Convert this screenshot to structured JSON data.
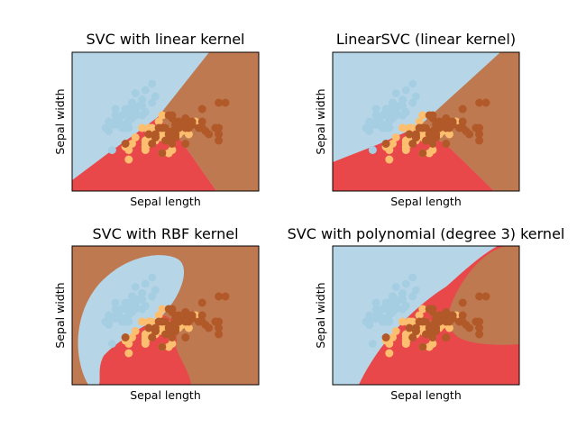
{
  "chart_data": [
    {
      "type": "scatter",
      "title": "SVC with linear kernel",
      "xlabel": "Sepal length",
      "ylabel": "Sepal width",
      "xticks": [],
      "yticks": [],
      "region_colors": {
        "class_0": "#b6d6e8",
        "class_1": "#e8484a",
        "class_2": "#bf7950"
      },
      "point_colors": {
        "class_0": "#a6cee3",
        "class_1": "#fdbf6f",
        "class_2": "#b15928"
      }
    },
    {
      "type": "scatter",
      "title": "LinearSVC (linear kernel)",
      "xlabel": "Sepal length",
      "ylabel": "Sepal width",
      "xticks": [],
      "yticks": [],
      "region_colors": {
        "class_0": "#b6d6e8",
        "class_1": "#e8484a",
        "class_2": "#bf7950"
      },
      "point_colors": {
        "class_0": "#a6cee3",
        "class_1": "#fdbf6f",
        "class_2": "#b15928"
      }
    },
    {
      "type": "scatter",
      "title": "SVC with RBF kernel",
      "xlabel": "Sepal length",
      "ylabel": "Sepal width",
      "xticks": [],
      "yticks": [],
      "region_colors": {
        "class_0": "#b6d6e8",
        "class_1": "#e8484a",
        "class_2": "#bf7950"
      },
      "point_colors": {
        "class_0": "#a6cee3",
        "class_1": "#fdbf6f",
        "class_2": "#b15928"
      }
    },
    {
      "type": "scatter",
      "title": "SVC with polynomial (degree 3) kernel",
      "xlabel": "Sepal length",
      "ylabel": "Sepal width",
      "xticks": [],
      "yticks": [],
      "region_colors": {
        "class_0": "#b6d6e8",
        "class_1": "#e8484a",
        "class_2": "#bf7950"
      },
      "point_colors": {
        "class_0": "#a6cee3",
        "class_1": "#fdbf6f",
        "class_2": "#b15928"
      }
    }
  ],
  "points": {
    "class_0": [
      [
        5.1,
        3.5
      ],
      [
        4.9,
        3.0
      ],
      [
        4.7,
        3.2
      ],
      [
        4.6,
        3.1
      ],
      [
        5.0,
        3.6
      ],
      [
        5.4,
        3.9
      ],
      [
        4.6,
        3.4
      ],
      [
        5.0,
        3.4
      ],
      [
        4.4,
        2.9
      ],
      [
        4.9,
        3.1
      ],
      [
        5.4,
        3.7
      ],
      [
        4.8,
        3.4
      ],
      [
        4.8,
        3.0
      ],
      [
        4.3,
        3.0
      ],
      [
        5.8,
        4.0
      ],
      [
        5.7,
        4.4
      ],
      [
        5.4,
        3.9
      ],
      [
        5.1,
        3.5
      ],
      [
        5.7,
        3.8
      ],
      [
        5.1,
        3.8
      ],
      [
        5.4,
        3.4
      ],
      [
        5.1,
        3.7
      ],
      [
        4.6,
        3.6
      ],
      [
        5.1,
        3.3
      ],
      [
        4.8,
        3.4
      ],
      [
        5.0,
        3.0
      ],
      [
        5.0,
        3.4
      ],
      [
        5.2,
        3.5
      ],
      [
        5.2,
        3.4
      ],
      [
        4.7,
        3.2
      ],
      [
        4.8,
        3.1
      ],
      [
        5.4,
        3.4
      ],
      [
        5.2,
        4.1
      ],
      [
        5.5,
        4.2
      ],
      [
        4.9,
        3.1
      ],
      [
        5.0,
        3.2
      ],
      [
        5.5,
        3.5
      ],
      [
        4.9,
        3.6
      ],
      [
        4.4,
        3.0
      ],
      [
        5.1,
        3.4
      ],
      [
        5.0,
        3.5
      ],
      [
        4.5,
        2.3
      ],
      [
        4.4,
        3.2
      ],
      [
        5.0,
        3.5
      ],
      [
        5.1,
        3.8
      ],
      [
        4.8,
        3.0
      ],
      [
        5.1,
        3.8
      ],
      [
        4.6,
        3.2
      ],
      [
        5.3,
        3.7
      ],
      [
        5.0,
        3.3
      ]
    ],
    "class_1": [
      [
        7.0,
        3.2
      ],
      [
        6.4,
        3.2
      ],
      [
        6.9,
        3.1
      ],
      [
        5.5,
        2.3
      ],
      [
        6.5,
        2.8
      ],
      [
        5.7,
        2.8
      ],
      [
        6.3,
        3.3
      ],
      [
        4.9,
        2.4
      ],
      [
        6.6,
        2.9
      ],
      [
        5.2,
        2.7
      ],
      [
        5.0,
        2.0
      ],
      [
        5.9,
        3.0
      ],
      [
        6.0,
        2.2
      ],
      [
        6.1,
        2.9
      ],
      [
        5.6,
        2.9
      ],
      [
        6.7,
        3.1
      ],
      [
        5.6,
        3.0
      ],
      [
        5.8,
        2.7
      ],
      [
        6.2,
        2.2
      ],
      [
        5.6,
        2.5
      ],
      [
        5.9,
        3.2
      ],
      [
        6.1,
        2.8
      ],
      [
        6.3,
        2.5
      ],
      [
        6.1,
        2.8
      ],
      [
        6.4,
        2.9
      ],
      [
        6.6,
        3.0
      ],
      [
        6.8,
        2.8
      ],
      [
        6.7,
        3.0
      ],
      [
        6.0,
        2.9
      ],
      [
        5.7,
        2.6
      ],
      [
        5.5,
        2.4
      ],
      [
        5.5,
        2.4
      ],
      [
        5.8,
        2.7
      ],
      [
        6.0,
        2.7
      ],
      [
        5.4,
        3.0
      ],
      [
        6.0,
        3.4
      ],
      [
        6.7,
        3.1
      ],
      [
        6.3,
        2.3
      ],
      [
        5.6,
        3.0
      ],
      [
        5.5,
        2.5
      ],
      [
        5.5,
        2.6
      ],
      [
        6.1,
        3.0
      ],
      [
        5.8,
        2.6
      ],
      [
        5.0,
        2.3
      ],
      [
        5.6,
        2.7
      ],
      [
        5.7,
        3.0
      ],
      [
        5.7,
        2.9
      ],
      [
        6.2,
        2.9
      ],
      [
        5.1,
        2.5
      ],
      [
        5.7,
        2.8
      ]
    ],
    "class_2": [
      [
        6.3,
        3.3
      ],
      [
        5.8,
        2.7
      ],
      [
        7.1,
        3.0
      ],
      [
        6.3,
        2.9
      ],
      [
        6.5,
        3.0
      ],
      [
        7.6,
        3.0
      ],
      [
        4.9,
        2.5
      ],
      [
        7.3,
        2.9
      ],
      [
        6.7,
        2.5
      ],
      [
        7.2,
        3.6
      ],
      [
        6.5,
        3.2
      ],
      [
        6.4,
        2.7
      ],
      [
        6.8,
        3.0
      ],
      [
        5.7,
        2.5
      ],
      [
        5.8,
        2.8
      ],
      [
        6.4,
        3.2
      ],
      [
        6.5,
        3.0
      ],
      [
        7.7,
        3.8
      ],
      [
        7.7,
        2.6
      ],
      [
        6.0,
        2.2
      ],
      [
        6.9,
        3.2
      ],
      [
        5.6,
        2.8
      ],
      [
        7.7,
        2.8
      ],
      [
        6.3,
        2.7
      ],
      [
        6.7,
        3.3
      ],
      [
        7.2,
        3.2
      ],
      [
        6.2,
        2.8
      ],
      [
        6.1,
        3.0
      ],
      [
        6.4,
        2.8
      ],
      [
        7.2,
        3.0
      ],
      [
        7.4,
        2.8
      ],
      [
        7.9,
        3.8
      ],
      [
        6.4,
        2.8
      ],
      [
        6.3,
        2.8
      ],
      [
        6.1,
        2.6
      ],
      [
        7.7,
        3.0
      ],
      [
        6.3,
        3.4
      ],
      [
        6.4,
        3.1
      ],
      [
        6.0,
        3.0
      ],
      [
        6.9,
        3.1
      ],
      [
        6.7,
        3.1
      ],
      [
        6.9,
        3.1
      ],
      [
        5.8,
        2.7
      ],
      [
        6.8,
        3.2
      ],
      [
        6.7,
        3.3
      ],
      [
        6.7,
        3.0
      ],
      [
        6.3,
        2.5
      ],
      [
        6.5,
        3.0
      ],
      [
        6.2,
        3.4
      ],
      [
        5.9,
        3.0
      ]
    ]
  }
}
